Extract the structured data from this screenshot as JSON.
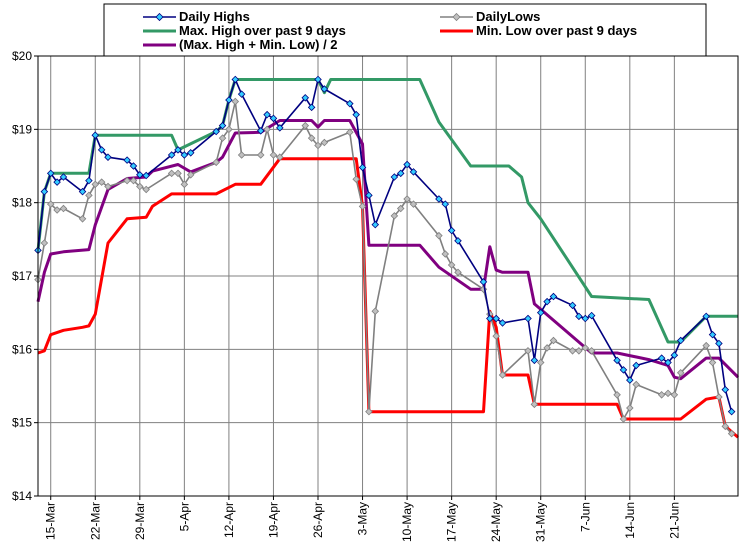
{
  "chart_data": {
    "type": "line",
    "title": "",
    "xlabel": "",
    "ylabel": "",
    "ylim": [
      14,
      20
    ],
    "yticks": [
      "$14",
      "$15",
      "$16",
      "$17",
      "$18",
      "$19",
      "$20"
    ],
    "xticks": [
      "15-Mar",
      "22-Mar",
      "29-Mar",
      "5-Apr",
      "12-Apr",
      "19-Apr",
      "26-Apr",
      "3-May",
      "10-May",
      "17-May",
      "24-May",
      "31-May",
      "7-Jun",
      "14-Jun",
      "21-Jun"
    ],
    "grid": true,
    "legend_placement": "top",
    "series": [
      {
        "name": "Daily Highs",
        "color": "#000080",
        "marker": "diamond",
        "marker_fill": "#33ccff",
        "values": [
          [
            0,
            17.35
          ],
          [
            1,
            18.15
          ],
          [
            2,
            18.4
          ],
          [
            3,
            18.28
          ],
          [
            4,
            18.35
          ],
          [
            7,
            18.15
          ],
          [
            8,
            18.3
          ],
          [
            9,
            18.92
          ],
          [
            10,
            18.72
          ],
          [
            11,
            18.62
          ],
          [
            14,
            18.58
          ],
          [
            15,
            18.5
          ],
          [
            16,
            18.38
          ],
          [
            17,
            18.37
          ],
          [
            21,
            18.65
          ],
          [
            22,
            18.72
          ],
          [
            23,
            18.65
          ],
          [
            24,
            18.68
          ],
          [
            28,
            18.97
          ],
          [
            29,
            19.05
          ],
          [
            30,
            19.4
          ],
          [
            31,
            19.68
          ],
          [
            32,
            19.48
          ],
          [
            35,
            18.98
          ],
          [
            36,
            19.2
          ],
          [
            37,
            19.15
          ],
          [
            38,
            19.02
          ],
          [
            42,
            19.43
          ],
          [
            43,
            19.3
          ],
          [
            44,
            19.68
          ],
          [
            45,
            19.55
          ],
          [
            49,
            19.35
          ],
          [
            50,
            19.2
          ],
          [
            51,
            18.48
          ],
          [
            52,
            18.1
          ],
          [
            53,
            17.7
          ],
          [
            56,
            18.35
          ],
          [
            57,
            18.4
          ],
          [
            58,
            18.52
          ],
          [
            59,
            18.42
          ],
          [
            63,
            18.05
          ],
          [
            64,
            17.98
          ],
          [
            65,
            17.62
          ],
          [
            66,
            17.48
          ],
          [
            70,
            16.92
          ],
          [
            71,
            16.42
          ],
          [
            72,
            16.42
          ],
          [
            73,
            16.36
          ],
          [
            77,
            16.42
          ],
          [
            78,
            15.85
          ],
          [
            79,
            16.5
          ],
          [
            80,
            16.65
          ],
          [
            81,
            16.72
          ],
          [
            84,
            16.6
          ],
          [
            85,
            16.45
          ],
          [
            86,
            16.42
          ],
          [
            87,
            16.46
          ],
          [
            91,
            15.85
          ],
          [
            92,
            15.72
          ],
          [
            93,
            15.58
          ],
          [
            94,
            15.78
          ],
          [
            98,
            15.88
          ],
          [
            99,
            15.82
          ],
          [
            100,
            15.92
          ],
          [
            101,
            16.12
          ],
          [
            105,
            16.45
          ],
          [
            106,
            16.2
          ],
          [
            107,
            16.08
          ],
          [
            108,
            15.45
          ],
          [
            109,
            15.15
          ]
        ]
      },
      {
        "name": "DailyLows",
        "color": "#808080",
        "marker": "diamond",
        "marker_fill": "#c0c0c0",
        "values": [
          [
            0,
            16.95
          ],
          [
            1,
            17.45
          ],
          [
            2,
            17.98
          ],
          [
            3,
            17.9
          ],
          [
            4,
            17.92
          ],
          [
            7,
            17.78
          ],
          [
            8,
            18.1
          ],
          [
            9,
            18.25
          ],
          [
            10,
            18.28
          ],
          [
            11,
            18.22
          ],
          [
            14,
            18.3
          ],
          [
            15,
            18.3
          ],
          [
            16,
            18.22
          ],
          [
            17,
            18.18
          ],
          [
            21,
            18.4
          ],
          [
            22,
            18.4
          ],
          [
            23,
            18.25
          ],
          [
            24,
            18.38
          ],
          [
            28,
            18.55
          ],
          [
            29,
            18.88
          ],
          [
            30,
            19.0
          ],
          [
            31,
            19.38
          ],
          [
            32,
            18.65
          ],
          [
            35,
            18.65
          ],
          [
            36,
            19.0
          ],
          [
            37,
            18.65
          ],
          [
            38,
            18.62
          ],
          [
            42,
            19.05
          ],
          [
            43,
            18.88
          ],
          [
            44,
            18.78
          ],
          [
            45,
            18.82
          ],
          [
            49,
            18.96
          ],
          [
            50,
            18.32
          ],
          [
            51,
            17.95
          ],
          [
            52,
            15.15
          ],
          [
            53,
            16.52
          ],
          [
            56,
            17.82
          ],
          [
            57,
            17.92
          ],
          [
            58,
            18.05
          ],
          [
            59,
            17.98
          ],
          [
            63,
            17.55
          ],
          [
            64,
            17.3
          ],
          [
            65,
            17.15
          ],
          [
            66,
            17.05
          ],
          [
            70,
            16.82
          ],
          [
            71,
            16.48
          ],
          [
            72,
            16.18
          ],
          [
            73,
            15.65
          ],
          [
            77,
            15.98
          ],
          [
            78,
            15.25
          ],
          [
            79,
            15.82
          ],
          [
            80,
            16.02
          ],
          [
            81,
            16.12
          ],
          [
            84,
            15.98
          ],
          [
            85,
            15.98
          ],
          [
            86,
            16.02
          ],
          [
            87,
            15.98
          ],
          [
            91,
            15.38
          ],
          [
            92,
            15.05
          ],
          [
            93,
            15.2
          ],
          [
            94,
            15.52
          ],
          [
            98,
            15.38
          ],
          [
            99,
            15.4
          ],
          [
            100,
            15.38
          ],
          [
            101,
            15.68
          ],
          [
            105,
            16.05
          ],
          [
            106,
            15.82
          ],
          [
            107,
            15.35
          ],
          [
            108,
            14.95
          ],
          [
            109,
            14.85
          ]
        ]
      },
      {
        "name": "Max. High over past 9 days",
        "color": "#339966",
        "marker": "none",
        "values": [
          [
            0,
            17.35
          ],
          [
            1,
            18.15
          ],
          [
            2,
            18.4
          ],
          [
            8,
            18.4
          ],
          [
            9,
            18.92
          ],
          [
            21,
            18.92
          ],
          [
            22,
            18.72
          ],
          [
            28,
            18.97
          ],
          [
            29,
            19.05
          ],
          [
            30,
            19.4
          ],
          [
            31,
            19.68
          ],
          [
            44,
            19.68
          ],
          [
            45,
            19.5
          ],
          [
            46,
            19.68
          ],
          [
            60,
            19.68
          ],
          [
            63,
            19.1
          ],
          [
            68,
            18.5
          ],
          [
            74,
            18.5
          ],
          [
            76,
            18.35
          ],
          [
            77,
            18.0
          ],
          [
            79,
            17.78
          ],
          [
            83,
            17.25
          ],
          [
            87,
            16.72
          ],
          [
            96,
            16.68
          ],
          [
            99,
            16.1
          ],
          [
            101,
            16.1
          ],
          [
            105,
            16.45
          ],
          [
            110,
            16.45
          ]
        ]
      },
      {
        "name": "Min. Low over past 9 days",
        "color": "#ff0000",
        "marker": "none",
        "values": [
          [
            0,
            15.95
          ],
          [
            1,
            15.98
          ],
          [
            2,
            16.2
          ],
          [
            4,
            16.26
          ],
          [
            7,
            16.3
          ],
          [
            8,
            16.32
          ],
          [
            9,
            16.48
          ],
          [
            11,
            17.45
          ],
          [
            14,
            17.78
          ],
          [
            17,
            17.8
          ],
          [
            18,
            17.95
          ],
          [
            21,
            18.12
          ],
          [
            28,
            18.12
          ],
          [
            31,
            18.25
          ],
          [
            35,
            18.25
          ],
          [
            38,
            18.6
          ],
          [
            50,
            18.6
          ],
          [
            51,
            17.95
          ],
          [
            52,
            15.15
          ],
          [
            70,
            15.15
          ],
          [
            71,
            16.52
          ],
          [
            72,
            16.3
          ],
          [
            73,
            15.65
          ],
          [
            77,
            15.65
          ],
          [
            78,
            15.25
          ],
          [
            91,
            15.25
          ],
          [
            92,
            15.05
          ],
          [
            101,
            15.05
          ],
          [
            105,
            15.32
          ],
          [
            107,
            15.35
          ],
          [
            108,
            14.95
          ],
          [
            110,
            14.8
          ]
        ]
      },
      {
        "name": "(Max. High + Min. Low) / 2",
        "color": "#800080",
        "marker": "none",
        "values": [
          [
            0,
            16.65
          ],
          [
            1,
            17.05
          ],
          [
            2,
            17.3
          ],
          [
            4,
            17.33
          ],
          [
            8,
            17.36
          ],
          [
            9,
            17.7
          ],
          [
            11,
            18.18
          ],
          [
            14,
            18.33
          ],
          [
            17,
            18.35
          ],
          [
            18,
            18.43
          ],
          [
            22,
            18.52
          ],
          [
            24,
            18.42
          ],
          [
            28,
            18.55
          ],
          [
            29,
            18.62
          ],
          [
            31,
            18.95
          ],
          [
            35,
            18.96
          ],
          [
            38,
            19.12
          ],
          [
            43,
            19.12
          ],
          [
            44,
            19.03
          ],
          [
            45,
            19.12
          ],
          [
            49,
            19.12
          ],
          [
            51,
            18.8
          ],
          [
            52,
            17.42
          ],
          [
            60,
            17.42
          ],
          [
            63,
            17.12
          ],
          [
            68,
            16.82
          ],
          [
            70,
            16.82
          ],
          [
            71,
            17.4
          ],
          [
            72,
            17.08
          ],
          [
            73,
            17.05
          ],
          [
            77,
            17.05
          ],
          [
            78,
            16.62
          ],
          [
            87,
            15.95
          ],
          [
            91,
            15.95
          ],
          [
            96,
            15.86
          ],
          [
            99,
            15.78
          ],
          [
            100,
            15.62
          ],
          [
            101,
            15.6
          ],
          [
            105,
            15.88
          ],
          [
            107,
            15.88
          ],
          [
            110,
            15.62
          ]
        ]
      }
    ]
  }
}
